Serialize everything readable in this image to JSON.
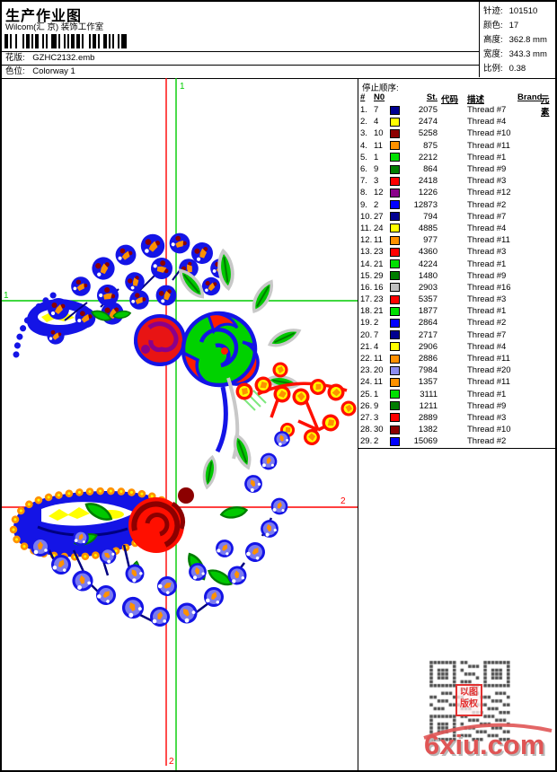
{
  "header": {
    "title": "生产作业图",
    "studio": "Wilcom(汇 京) 装饰工作室",
    "pattern_label": "花版:",
    "pattern_value": "GZHC2132.emb",
    "colorway_label": "色位:",
    "colorway_value": "Colorway 1",
    "stats": [
      {
        "label": "针迹:",
        "value": "101510"
      },
      {
        "label": "颜色:",
        "value": "17"
      },
      {
        "label": "高度:",
        "value": "362.8 mm"
      },
      {
        "label": "宽度:",
        "value": "343.3 mm"
      },
      {
        "label": "比例:",
        "value": "0.38"
      }
    ]
  },
  "stop_table": {
    "title": "停止顺序:",
    "columns": [
      "#",
      "N0",
      "",
      "St.",
      "代码",
      "描述",
      "Brand",
      "元素"
    ],
    "rows": [
      {
        "seq": "1.",
        "n0": "7",
        "color": "#000090",
        "st": "2075",
        "code": "",
        "desc": "Thread #7",
        "brand": "",
        "element": ""
      },
      {
        "seq": "2.",
        "n0": "4",
        "color": "#ffff00",
        "st": "2474",
        "code": "",
        "desc": "Thread #4",
        "brand": "",
        "element": ""
      },
      {
        "seq": "3.",
        "n0": "10",
        "color": "#8c0000",
        "st": "5258",
        "code": "",
        "desc": "Thread #10",
        "brand": "",
        "element": ""
      },
      {
        "seq": "4.",
        "n0": "11",
        "color": "#ff9100",
        "st": "875",
        "code": "",
        "desc": "Thread #11",
        "brand": "",
        "element": ""
      },
      {
        "seq": "5.",
        "n0": "1",
        "color": "#00e000",
        "st": "2212",
        "code": "",
        "desc": "Thread #1",
        "brand": "",
        "element": ""
      },
      {
        "seq": "6.",
        "n0": "9",
        "color": "#007d00",
        "st": "864",
        "code": "",
        "desc": "Thread #9",
        "brand": "",
        "element": ""
      },
      {
        "seq": "7.",
        "n0": "3",
        "color": "#ff0000",
        "st": "2418",
        "code": "",
        "desc": "Thread #3",
        "brand": "",
        "element": ""
      },
      {
        "seq": "8.",
        "n0": "12",
        "color": "#8a008a",
        "st": "1226",
        "code": "",
        "desc": "Thread #12",
        "brand": "",
        "element": ""
      },
      {
        "seq": "9.",
        "n0": "2",
        "color": "#0000ff",
        "st": "12873",
        "code": "",
        "desc": "Thread #2",
        "brand": "",
        "element": ""
      },
      {
        "seq": "10.",
        "n0": "27",
        "color": "#000090",
        "st": "794",
        "code": "",
        "desc": "Thread #7",
        "brand": "",
        "element": ""
      },
      {
        "seq": "11.",
        "n0": "24",
        "color": "#ffff00",
        "st": "4885",
        "code": "",
        "desc": "Thread #4",
        "brand": "",
        "element": ""
      },
      {
        "seq": "12.",
        "n0": "11",
        "color": "#ff9100",
        "st": "977",
        "code": "",
        "desc": "Thread #11",
        "brand": "",
        "element": ""
      },
      {
        "seq": "13.",
        "n0": "23",
        "color": "#ff0000",
        "st": "4360",
        "code": "",
        "desc": "Thread #3",
        "brand": "",
        "element": ""
      },
      {
        "seq": "14.",
        "n0": "21",
        "color": "#00e000",
        "st": "4224",
        "code": "",
        "desc": "Thread #1",
        "brand": "",
        "element": ""
      },
      {
        "seq": "15.",
        "n0": "29",
        "color": "#007d00",
        "st": "1480",
        "code": "",
        "desc": "Thread #9",
        "brand": "",
        "element": ""
      },
      {
        "seq": "16.",
        "n0": "16",
        "color": "#c0c0c0",
        "st": "2903",
        "code": "",
        "desc": "Thread #16",
        "brand": "",
        "element": ""
      },
      {
        "seq": "17.",
        "n0": "23",
        "color": "#ff0000",
        "st": "5357",
        "code": "",
        "desc": "Thread #3",
        "brand": "",
        "element": ""
      },
      {
        "seq": "18.",
        "n0": "21",
        "color": "#00e000",
        "st": "1877",
        "code": "",
        "desc": "Thread #1",
        "brand": "",
        "element": ""
      },
      {
        "seq": "19.",
        "n0": "2",
        "color": "#0000ff",
        "st": "2864",
        "code": "",
        "desc": "Thread #2",
        "brand": "",
        "element": ""
      },
      {
        "seq": "20.",
        "n0": "7",
        "color": "#000090",
        "st": "2717",
        "code": "",
        "desc": "Thread #7",
        "brand": "",
        "element": ""
      },
      {
        "seq": "21.",
        "n0": "4",
        "color": "#ffff00",
        "st": "2906",
        "code": "",
        "desc": "Thread #4",
        "brand": "",
        "element": ""
      },
      {
        "seq": "22.",
        "n0": "11",
        "color": "#ff9100",
        "st": "2886",
        "code": "",
        "desc": "Thread #11",
        "brand": "",
        "element": ""
      },
      {
        "seq": "23.",
        "n0": "20",
        "color": "#8c8cf0",
        "st": "7984",
        "code": "",
        "desc": "Thread #20",
        "brand": "",
        "element": ""
      },
      {
        "seq": "24.",
        "n0": "11",
        "color": "#ff9100",
        "st": "1357",
        "code": "",
        "desc": "Thread #11",
        "brand": "",
        "element": ""
      },
      {
        "seq": "25.",
        "n0": "1",
        "color": "#00e000",
        "st": "3111",
        "code": "",
        "desc": "Thread #1",
        "brand": "",
        "element": ""
      },
      {
        "seq": "26.",
        "n0": "9",
        "color": "#007d00",
        "st": "1211",
        "code": "",
        "desc": "Thread #9",
        "brand": "",
        "element": ""
      },
      {
        "seq": "27.",
        "n0": "3",
        "color": "#ff0000",
        "st": "2889",
        "code": "",
        "desc": "Thread #3",
        "brand": "",
        "element": ""
      },
      {
        "seq": "28.",
        "n0": "30",
        "color": "#8c0000",
        "st": "1382",
        "code": "",
        "desc": "Thread #10",
        "brand": "",
        "element": ""
      },
      {
        "seq": "29.",
        "n0": "2",
        "color": "#0000ff",
        "st": "15069",
        "code": "",
        "desc": "Thread #2",
        "brand": "",
        "element": ""
      }
    ]
  },
  "guides": {
    "top_v_label": "1",
    "left_h_label": "1",
    "right_h_label": "2",
    "bottom_v_label": "2",
    "green": "#00cc00",
    "red": "#ff0000"
  },
  "design_palette": {
    "blue": "#1414e6",
    "navy": "#000080",
    "periwinkle": "#7b7bf0",
    "orange": "#ff9100",
    "yellow": "#ffff00",
    "green": "#00c800",
    "dark_green": "#007d00",
    "red": "#ff0f00",
    "dark_red": "#8c0000",
    "purple": "#8a008a",
    "silver": "#c8c8c8"
  },
  "watermark": {
    "site": "6xiu.com",
    "stamp": "以图版权"
  }
}
